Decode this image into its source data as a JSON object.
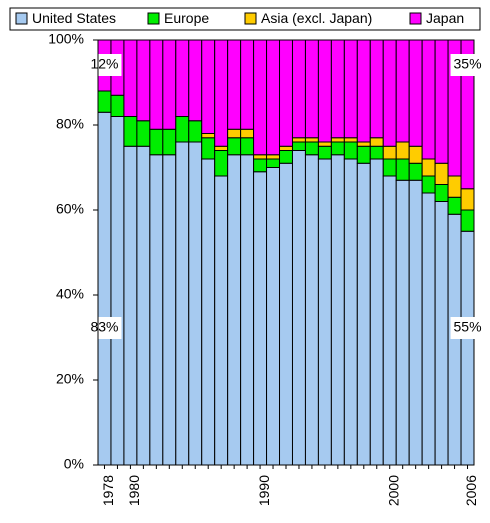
{
  "chart_data": {
    "type": "stacked_bar",
    "categories": [
      "1978",
      null,
      "1980",
      null,
      null,
      null,
      null,
      null,
      null,
      null,
      null,
      null,
      "1990",
      null,
      null,
      null,
      null,
      null,
      null,
      null,
      null,
      null,
      "2000",
      null,
      null,
      null,
      null,
      null,
      "2006"
    ],
    "series": [
      {
        "name": "United States",
        "color": "#a6caf0",
        "values": [
          83,
          82,
          75,
          75,
          73,
          73,
          76,
          76,
          72,
          68,
          73,
          73,
          69,
          70,
          71,
          74,
          73,
          72,
          73,
          72,
          71,
          72,
          68,
          67,
          67,
          64,
          62,
          59,
          55
        ],
        "value_labels": [
          "83%",
          null,
          null,
          null,
          null,
          null,
          null,
          null,
          null,
          null,
          null,
          null,
          null,
          null,
          null,
          null,
          null,
          null,
          null,
          null,
          null,
          null,
          null,
          null,
          null,
          null,
          null,
          null,
          "55%"
        ]
      },
      {
        "name": "Europe",
        "color": "#00ee00",
        "values": [
          5,
          5,
          7,
          6,
          6,
          6,
          6,
          5,
          5,
          6,
          4,
          4,
          3,
          2,
          3,
          2,
          3,
          3,
          3,
          4,
          4,
          3,
          4,
          5,
          4,
          4,
          4,
          4,
          5
        ]
      },
      {
        "name": "Asia (excl. Japan)",
        "color": "#ffcc00",
        "values": [
          0,
          0,
          0,
          0,
          0,
          0,
          0,
          0,
          1,
          1,
          2,
          2,
          1,
          1,
          1,
          1,
          1,
          1,
          1,
          1,
          1,
          2,
          3,
          4,
          4,
          4,
          5,
          5,
          5
        ]
      },
      {
        "name": "Japan",
        "color": "#ff00ff",
        "values": [
          12,
          13,
          18,
          19,
          21,
          21,
          18,
          19,
          22,
          25,
          21,
          21,
          27,
          27,
          25,
          23,
          23,
          24,
          23,
          23,
          24,
          23,
          25,
          24,
          25,
          28,
          29,
          32,
          35
        ],
        "value_labels": [
          "12%",
          null,
          null,
          null,
          null,
          null,
          null,
          null,
          null,
          null,
          null,
          null,
          null,
          null,
          null,
          null,
          null,
          null,
          null,
          null,
          null,
          null,
          null,
          null,
          null,
          null,
          null,
          null,
          "35%"
        ]
      }
    ],
    "ylim": [
      0,
      100
    ],
    "yticks": [
      {
        "value": 0,
        "label": "0%"
      },
      {
        "value": 20,
        "label": "20%"
      },
      {
        "value": 40,
        "label": "40%"
      },
      {
        "value": 60,
        "label": "60%"
      },
      {
        "value": 80,
        "label": "80%"
      },
      {
        "value": 100,
        "label": "100%"
      }
    ]
  }
}
